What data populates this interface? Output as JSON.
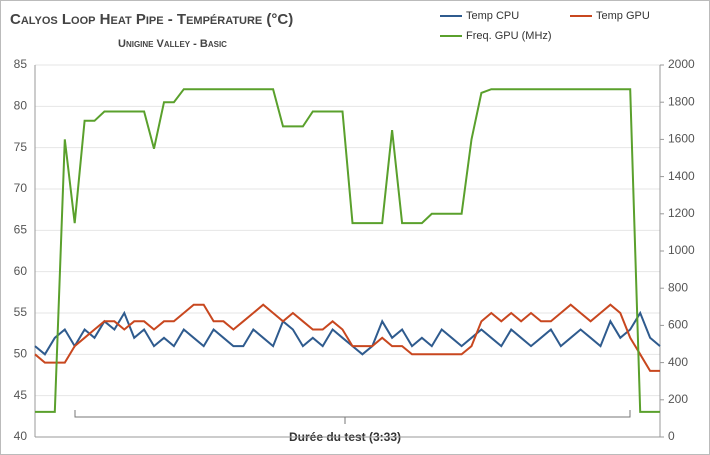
{
  "chart_data": {
    "type": "line",
    "title": "Calyos Loop Heat Pipe - Température (°C)",
    "subtitle": "Unigine Valley - Basic",
    "xlabel": "Durée du test (3:33)",
    "ylim": [
      40,
      85
    ],
    "yticks": [
      40,
      45,
      50,
      55,
      60,
      65,
      70,
      75,
      80,
      85
    ],
    "y2lim": [
      0,
      2000
    ],
    "y2ticks": [
      0,
      200,
      400,
      600,
      800,
      1000,
      1200,
      1400,
      1600,
      1800,
      2000
    ],
    "grid": true,
    "legend": "top-right",
    "series": [
      {
        "name": "Temp CPU",
        "color": "#2f5b8e",
        "values": [
          51,
          50,
          52,
          53,
          51,
          53,
          52,
          54,
          53,
          55,
          52,
          53,
          51,
          52,
          51,
          53,
          52,
          51,
          53,
          52,
          51,
          51,
          53,
          52,
          51,
          54,
          53,
          51,
          52,
          51,
          53,
          52,
          51,
          50,
          51,
          54,
          52,
          53,
          51,
          52,
          51,
          53,
          52,
          51,
          52,
          53,
          52,
          51,
          53,
          52,
          51,
          52,
          53,
          51,
          52,
          53,
          52,
          51,
          54,
          52,
          53,
          55,
          52,
          51
        ]
      },
      {
        "name": "Temp GPU",
        "color": "#c8471f",
        "values": [
          50,
          49,
          49,
          49,
          51,
          52,
          53,
          54,
          54,
          53,
          54,
          54,
          53,
          54,
          54,
          55,
          56,
          56,
          54,
          54,
          53,
          54,
          55,
          56,
          55,
          54,
          55,
          54,
          53,
          53,
          54,
          53,
          51,
          51,
          51,
          52,
          51,
          51,
          50,
          50,
          50,
          50,
          50,
          50,
          51,
          54,
          55,
          54,
          55,
          54,
          55,
          54,
          54,
          55,
          56,
          55,
          54,
          55,
          56,
          55,
          52,
          50,
          48,
          48
        ]
      },
      {
        "name": "Freq. GPU (MHz)",
        "color": "#5aa02c",
        "axis": "y2",
        "values": [
          135,
          135,
          135,
          1600,
          1150,
          1700,
          1700,
          1750,
          1750,
          1750,
          1750,
          1750,
          1550,
          1800,
          1800,
          1870,
          1870,
          1870,
          1870,
          1870,
          1870,
          1870,
          1870,
          1870,
          1870,
          1670,
          1670,
          1670,
          1750,
          1750,
          1750,
          1750,
          1150,
          1150,
          1150,
          1150,
          1650,
          1150,
          1150,
          1150,
          1200,
          1200,
          1200,
          1200,
          1600,
          1850,
          1870,
          1870,
          1870,
          1870,
          1870,
          1870,
          1870,
          1870,
          1870,
          1870,
          1870,
          1870,
          1870,
          1870,
          1870,
          135,
          135,
          135
        ]
      }
    ]
  }
}
